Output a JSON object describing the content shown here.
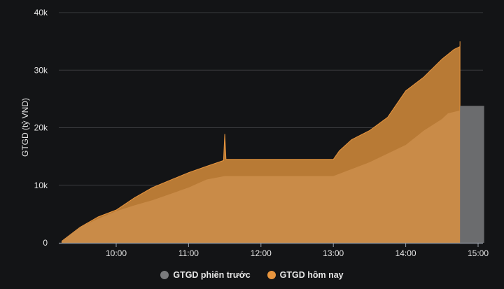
{
  "chart_data": {
    "type": "area",
    "ylabel": "GTGD (tỷ VND)",
    "ylim": [
      0,
      40000
    ],
    "yticks": [
      0,
      10000,
      20000,
      30000,
      40000
    ],
    "ytick_labels": [
      "0",
      "10k",
      "20k",
      "30k",
      "40k"
    ],
    "xlim": [
      "09:15",
      "15:05"
    ],
    "xtick_labels": [
      "10:00",
      "11:00",
      "12:00",
      "13:00",
      "14:00",
      "15:00"
    ],
    "grid": true,
    "legend_position": "bottom",
    "series": [
      {
        "name": "GTGD hôm nay",
        "color": "#b87a35",
        "x": [
          "09:15",
          "09:30",
          "09:45",
          "10:00",
          "10:15",
          "10:30",
          "10:45",
          "11:00",
          "11:15",
          "11:29",
          "11:30",
          "11:31",
          "13:00",
          "13:05",
          "13:15",
          "13:30",
          "13:45",
          "14:00",
          "14:15",
          "14:30",
          "14:40",
          "14:45",
          "14:45"
        ],
        "values": [
          300,
          2700,
          4500,
          5700,
          7800,
          9600,
          10900,
          12200,
          13300,
          14300,
          18900,
          14500,
          14500,
          16000,
          17900,
          19500,
          21800,
          26400,
          28800,
          31900,
          33600,
          34100,
          35000
        ]
      },
      {
        "name": "GTGD phiên trước",
        "color": "#c98b48",
        "x": [
          "09:15",
          "09:30",
          "09:45",
          "10:00",
          "10:15",
          "10:30",
          "10:45",
          "11:00",
          "11:15",
          "11:30",
          "13:00",
          "13:15",
          "13:30",
          "13:45",
          "14:00",
          "14:15",
          "14:30",
          "14:35",
          "14:45"
        ],
        "values": [
          300,
          2700,
          4200,
          5500,
          6500,
          7400,
          8500,
          9600,
          11000,
          11600,
          11600,
          12800,
          14000,
          15500,
          17000,
          19500,
          21500,
          22500,
          23000
        ]
      },
      {
        "name": "GTGD phiên trước",
        "type": "bar",
        "color": "#6b6c6e",
        "x": [
          "14:45",
          "15:05"
        ],
        "value": 23800
      }
    ],
    "legend": [
      {
        "label": "GTGD phiên trước",
        "color": "#7a7b7d"
      },
      {
        "label": "GTGD hôm nay",
        "color": "#e8953e"
      }
    ]
  }
}
